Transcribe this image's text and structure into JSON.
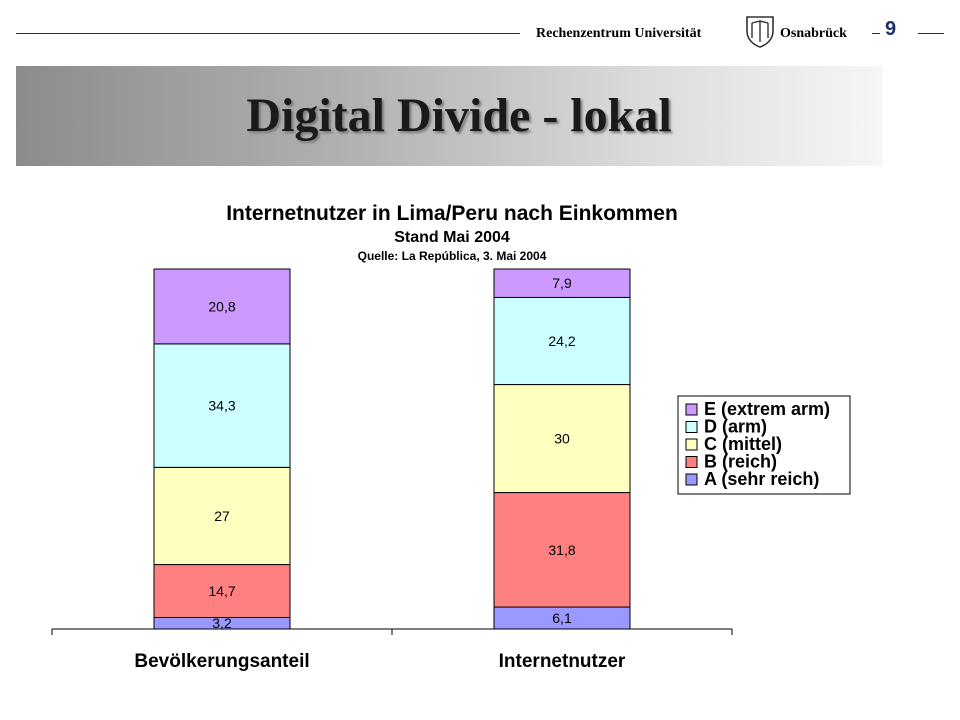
{
  "header": {
    "institution_left": "Rechenzentrum Universität",
    "institution_right": "Osnabrück",
    "page_number": "9"
  },
  "slide": {
    "title": "Digital Divide - lokal"
  },
  "chart_data": {
    "type": "bar",
    "stacked": true,
    "title": "Internetnutzer in Lima/Peru nach Einkommen",
    "subtitle": "Stand Mai 2004",
    "source": "Quelle: La República, 3. Mai 2004",
    "categories": [
      "Bevölkerungsanteil",
      "Internetnutzer"
    ],
    "series": [
      {
        "name": "A (sehr reich)",
        "color": "#9999ff",
        "values": [
          3.2,
          6.1
        ],
        "labels": [
          "3,2",
          "6,1"
        ]
      },
      {
        "name": "B (reich)",
        "color": "#ff8080",
        "values": [
          14.7,
          31.8
        ],
        "labels": [
          "14,7",
          "31,8"
        ]
      },
      {
        "name": "C (mittel)",
        "color": "#ffffc0",
        "values": [
          27,
          30
        ],
        "labels": [
          "27",
          "30"
        ]
      },
      {
        "name": "D (arm)",
        "color": "#ccffff",
        "values": [
          34.3,
          24.2
        ],
        "labels": [
          "34,3",
          "24,2"
        ]
      },
      {
        "name": "E (extrem arm)",
        "color": "#cc99ff",
        "values": [
          20.8,
          7.9
        ],
        "labels": [
          "20,8",
          "7,9"
        ]
      }
    ],
    "legend_order": [
      "E (extrem arm)",
      "D (arm)",
      "C (mittel)",
      "B (reich)",
      "A (sehr reich)"
    ],
    "legend_position": "right",
    "ylim": [
      0,
      100
    ],
    "grid": false
  }
}
